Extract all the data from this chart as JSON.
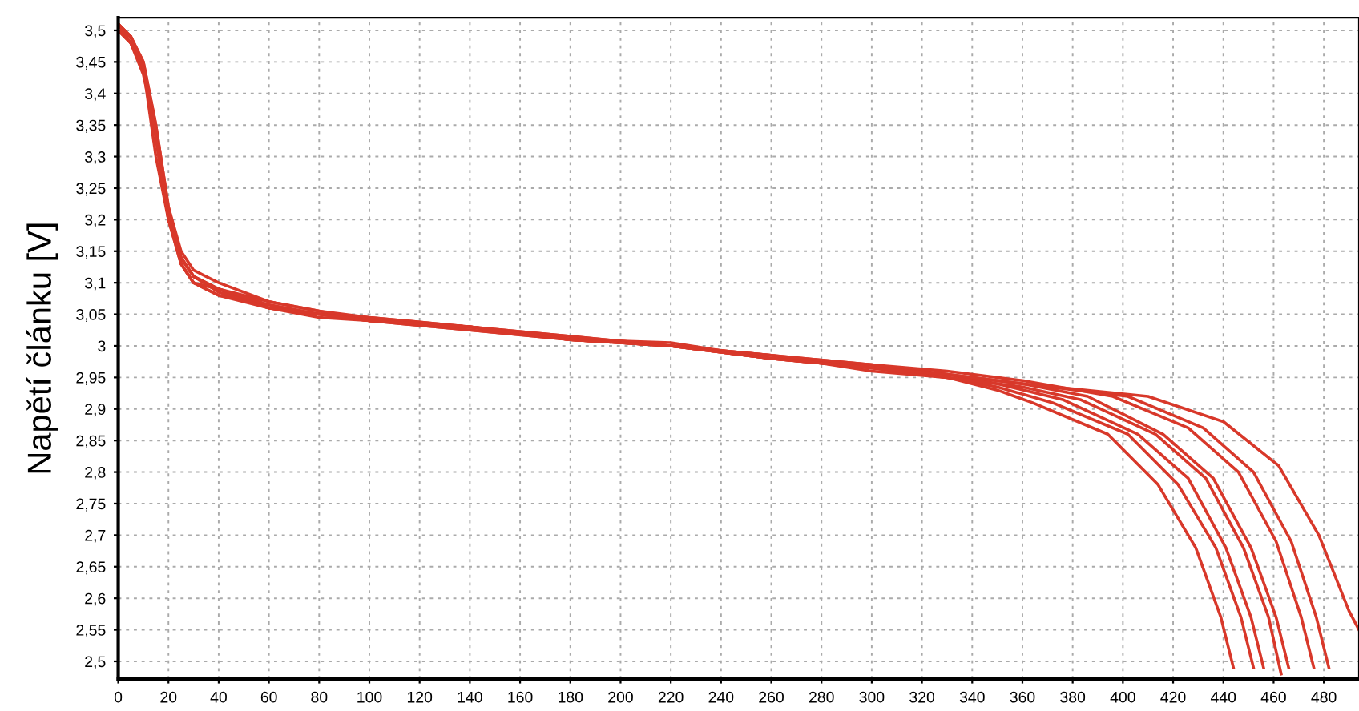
{
  "chart_data": {
    "type": "line",
    "ylabel": "Napětí článku [V]",
    "xlim": [
      0,
      494
    ],
    "ylim": [
      2.472,
      3.52
    ],
    "xticks": [
      0,
      20,
      40,
      60,
      80,
      100,
      120,
      140,
      160,
      180,
      200,
      220,
      240,
      260,
      280,
      300,
      320,
      340,
      360,
      380,
      400,
      420,
      440,
      460,
      480
    ],
    "yticks": [
      {
        "value": 2.5,
        "label": "2,5"
      },
      {
        "value": 2.55,
        "label": "2,55"
      },
      {
        "value": 2.6,
        "label": "2,6"
      },
      {
        "value": 2.65,
        "label": "2,65"
      },
      {
        "value": 2.7,
        "label": "2,7"
      },
      {
        "value": 2.75,
        "label": "2,75"
      },
      {
        "value": 2.8,
        "label": "2,8"
      },
      {
        "value": 2.85,
        "label": "2,85"
      },
      {
        "value": 2.9,
        "label": "2,9"
      },
      {
        "value": 2.95,
        "label": "2,95"
      },
      {
        "value": 3,
        "label": "3"
      },
      {
        "value": 3.05,
        "label": "3,05"
      },
      {
        "value": 3.1,
        "label": "3,1"
      },
      {
        "value": 3.15,
        "label": "3,15"
      },
      {
        "value": 3.2,
        "label": "3,2"
      },
      {
        "value": 3.25,
        "label": "3,25"
      },
      {
        "value": 3.3,
        "label": "3,3"
      },
      {
        "value": 3.35,
        "label": "3,35"
      },
      {
        "value": 3.4,
        "label": "3,4"
      },
      {
        "value": 3.45,
        "label": "3,45"
      },
      {
        "value": 3.5,
        "label": "3,5"
      }
    ],
    "grid": true,
    "marker": "none",
    "line_style": "solid",
    "series": [
      {
        "color": "#d8382a",
        "x": [
          0,
          5,
          10,
          15,
          20,
          25,
          30,
          40,
          60,
          80,
          100,
          140,
          180,
          220,
          260,
          300,
          330,
          350,
          364,
          394,
          414,
          429,
          439,
          444
        ],
        "values": [
          3.51,
          3.49,
          3.44,
          3.33,
          3.2,
          3.14,
          3.11,
          3.09,
          3.06,
          3.05,
          3.04,
          3.03,
          3.01,
          3.0,
          2.98,
          2.965,
          2.95,
          2.93,
          2.91,
          2.86,
          2.78,
          2.68,
          2.57,
          2.49
        ]
      },
      {
        "color": "#d8382a",
        "x": [
          0,
          5,
          10,
          15,
          20,
          25,
          30,
          40,
          60,
          80,
          100,
          140,
          180,
          220,
          260,
          300,
          330,
          350,
          372,
          402,
          422,
          437,
          447,
          452
        ],
        "values": [
          3.5,
          3.48,
          3.43,
          3.34,
          3.21,
          3.13,
          3.1,
          3.08,
          3.065,
          3.05,
          3.045,
          3.03,
          3.015,
          3.0,
          2.985,
          2.96,
          2.95,
          2.935,
          2.91,
          2.86,
          2.78,
          2.68,
          2.57,
          2.49
        ]
      },
      {
        "color": "#d8382a",
        "x": [
          0,
          5,
          10,
          15,
          20,
          25,
          30,
          40,
          60,
          80,
          100,
          140,
          180,
          220,
          260,
          300,
          330,
          350,
          376,
          406,
          426,
          441,
          451,
          456
        ],
        "values": [
          3.51,
          3.49,
          3.45,
          3.35,
          3.22,
          3.14,
          3.11,
          3.09,
          3.07,
          3.055,
          3.04,
          3.025,
          3.01,
          3.005,
          2.98,
          2.97,
          2.955,
          2.94,
          2.915,
          2.86,
          2.79,
          2.68,
          2.57,
          2.49
        ]
      },
      {
        "color": "#d8382a",
        "x": [
          0,
          5,
          10,
          15,
          20,
          25,
          30,
          40,
          60,
          80,
          100,
          140,
          180,
          220,
          260,
          300,
          330,
          360,
          383,
          413,
          433,
          448,
          458,
          463
        ],
        "values": [
          3.5,
          3.48,
          3.44,
          3.3,
          3.2,
          3.13,
          3.1,
          3.09,
          3.06,
          3.05,
          3.04,
          3.03,
          3.01,
          3.0,
          2.98,
          2.965,
          2.95,
          2.935,
          2.915,
          2.86,
          2.79,
          2.68,
          2.57,
          2.48
        ]
      },
      {
        "color": "#d8382a",
        "x": [
          0,
          5,
          10,
          15,
          20,
          25,
          30,
          40,
          60,
          80,
          100,
          140,
          180,
          220,
          260,
          300,
          330,
          360,
          386,
          416,
          436,
          451,
          461,
          466
        ],
        "values": [
          3.51,
          3.49,
          3.44,
          3.34,
          3.21,
          3.14,
          3.11,
          3.085,
          3.06,
          3.045,
          3.04,
          3.03,
          3.01,
          3.0,
          2.985,
          2.97,
          2.955,
          2.94,
          2.92,
          2.86,
          2.79,
          2.68,
          2.57,
          2.49
        ]
      },
      {
        "color": "#d8382a",
        "x": [
          0,
          5,
          10,
          15,
          20,
          25,
          30,
          40,
          60,
          80,
          100,
          140,
          180,
          220,
          260,
          300,
          330,
          360,
          396,
          426,
          446,
          461,
          471,
          476
        ],
        "values": [
          3.5,
          3.49,
          3.45,
          3.35,
          3.22,
          3.15,
          3.12,
          3.1,
          3.07,
          3.055,
          3.045,
          3.03,
          3.015,
          3.0,
          2.985,
          2.97,
          2.96,
          2.945,
          2.92,
          2.87,
          2.8,
          2.69,
          2.57,
          2.49
        ]
      },
      {
        "color": "#d8382a",
        "x": [
          0,
          5,
          10,
          15,
          20,
          25,
          30,
          40,
          60,
          80,
          100,
          140,
          180,
          220,
          260,
          300,
          330,
          360,
          402,
          432,
          452,
          467,
          477,
          482
        ],
        "values": [
          3.51,
          3.48,
          3.44,
          3.34,
          3.21,
          3.14,
          3.11,
          3.09,
          3.065,
          3.05,
          3.04,
          3.025,
          3.01,
          3.0,
          2.98,
          2.965,
          2.955,
          2.94,
          2.92,
          2.87,
          2.8,
          2.69,
          2.57,
          2.49
        ]
      },
      {
        "color": "#d8382a",
        "x": [
          0,
          5,
          10,
          15,
          20,
          25,
          30,
          40,
          60,
          80,
          100,
          140,
          180,
          220,
          260,
          300,
          330,
          360,
          410,
          440,
          462,
          478,
          490,
          494
        ],
        "values": [
          3.5,
          3.49,
          3.44,
          3.33,
          3.2,
          3.13,
          3.1,
          3.08,
          3.06,
          3.05,
          3.04,
          3.03,
          3.01,
          3.0,
          2.98,
          2.965,
          2.955,
          2.94,
          2.92,
          2.88,
          2.81,
          2.7,
          2.58,
          2.55
        ]
      }
    ]
  }
}
